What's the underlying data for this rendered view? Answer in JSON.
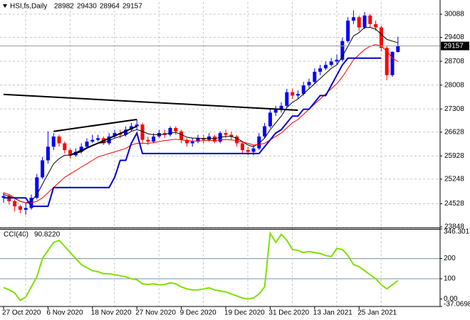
{
  "chart_data": [
    {
      "type": "candlestick",
      "title": "HSI,fs,Daily",
      "ylim": [
        23827,
        30443
      ],
      "yticks": [
        30088,
        29408,
        28708,
        28008,
        27308,
        26628,
        25928,
        25248,
        24528,
        23848
      ],
      "grid": true,
      "up_color": "#0000ff",
      "down_color": "#ff0000",
      "current_line_color": "#9a9a9a",
      "series": [
        {
          "open": [
            24700,
            24750,
            24600,
            24450,
            24350,
            24400,
            24700,
            25300,
            25800,
            26200,
            26500,
            26300,
            26100,
            25950,
            26050,
            26200,
            26350,
            26400,
            26450,
            26300,
            26500,
            26600,
            26550,
            26700,
            26800,
            26850,
            26400,
            26350,
            26500,
            26600,
            26550,
            26750,
            26650,
            26400,
            26300,
            26350,
            26450,
            26400,
            26500,
            26350,
            26600,
            26550,
            26500,
            26300,
            26100,
            26050,
            26150,
            26500,
            26800,
            27200,
            27300,
            27400,
            27800,
            27700,
            27750,
            28000,
            28100,
            28400,
            28500,
            28600,
            28700,
            28750,
            29300,
            29900,
            30000,
            29700,
            30050,
            29800,
            29700,
            29100,
            28300,
            28982
          ],
          "high": [
            24850,
            24800,
            24650,
            24500,
            24550,
            24800,
            25400,
            25900,
            26650,
            26600,
            26550,
            26350,
            26150,
            26150,
            26300,
            26450,
            26550,
            26550,
            26500,
            26600,
            26700,
            26700,
            26800,
            26900,
            27000,
            26900,
            26500,
            26600,
            26700,
            26700,
            26800,
            26800,
            26700,
            26450,
            26450,
            26550,
            26550,
            26600,
            26550,
            26650,
            26700,
            26650,
            26550,
            26350,
            26200,
            26250,
            26600,
            26900,
            27300,
            27400,
            27500,
            27900,
            27900,
            27850,
            28100,
            28200,
            28500,
            28600,
            28700,
            28800,
            28900,
            29400,
            30000,
            30200,
            30050,
            30150,
            30100,
            29900,
            29750,
            29150,
            29000,
            29430
          ],
          "low": [
            24550,
            24500,
            24300,
            24250,
            24200,
            24350,
            24650,
            25250,
            25700,
            26100,
            26200,
            26000,
            25850,
            25900,
            26000,
            26150,
            26300,
            26350,
            26250,
            26250,
            26450,
            26450,
            26500,
            26650,
            26700,
            26300,
            26250,
            26300,
            26450,
            26450,
            26500,
            26550,
            26300,
            26200,
            26200,
            26300,
            26300,
            26350,
            26300,
            26300,
            26450,
            26400,
            26200,
            26000,
            25950,
            25950,
            26100,
            26450,
            26750,
            27100,
            27200,
            27350,
            27600,
            27600,
            27700,
            27900,
            28050,
            28300,
            28450,
            28550,
            28600,
            28700,
            29250,
            29800,
            29600,
            29650,
            29700,
            29600,
            29000,
            28150,
            28250,
            28964
          ],
          "close": [
            24750,
            24600,
            24450,
            24350,
            24400,
            24700,
            25300,
            25800,
            26200,
            26500,
            26300,
            26100,
            25950,
            26050,
            26200,
            26350,
            26400,
            26450,
            26300,
            26500,
            26600,
            26550,
            26700,
            26800,
            26850,
            26400,
            26350,
            26500,
            26600,
            26550,
            26750,
            26650,
            26400,
            26300,
            26350,
            26450,
            26400,
            26500,
            26350,
            26600,
            26550,
            26500,
            26300,
            26100,
            26050,
            26150,
            26500,
            26800,
            27200,
            27300,
            27400,
            27800,
            27700,
            27750,
            28000,
            28100,
            28400,
            28500,
            28600,
            28700,
            28750,
            29300,
            29900,
            30000,
            29700,
            30050,
            29800,
            29700,
            29100,
            28300,
            28982,
            29157
          ]
        },
        {
          "color": "#000000",
          "values": [
            24800,
            24750,
            24680,
            24600,
            24550,
            24600,
            24800,
            25100,
            25400,
            25700,
            25850,
            25950,
            25950,
            26000,
            26050,
            26150,
            26250,
            26300,
            26320,
            26380,
            26450,
            26500,
            26550,
            26650,
            26700,
            26650,
            26580,
            26550,
            26560,
            26560,
            26600,
            26620,
            26560,
            26480,
            26450,
            26450,
            26440,
            26450,
            26430,
            26480,
            26500,
            26500,
            26450,
            26350,
            26250,
            26200,
            26300,
            26450,
            26700,
            26900,
            27100,
            27350,
            27500,
            27600,
            27750,
            27900,
            28050,
            28200,
            28350,
            28500,
            28600,
            28850,
            29150,
            29450,
            29550,
            29700,
            29700,
            29650,
            29500,
            29350,
            29300,
            29250
          ]
        },
        {
          "color": "#ff0000",
          "values": [
            24850,
            24800,
            24700,
            24600,
            24550,
            24550,
            24600,
            24700,
            24850,
            25000,
            25150,
            25300,
            25400,
            25500,
            25600,
            25700,
            25800,
            25900,
            25950,
            26000,
            26050,
            26100,
            26150,
            26250,
            26300,
            26300,
            26300,
            26320,
            26350,
            26380,
            26400,
            26420,
            26400,
            26380,
            26370,
            26370,
            26380,
            26390,
            26380,
            26400,
            26410,
            26400,
            26380,
            26340,
            26300,
            26250,
            26260,
            26300,
            26400,
            26500,
            26600,
            26750,
            26900,
            27000,
            27150,
            27300,
            27450,
            27600,
            27750,
            27900,
            28050,
            28250,
            28500,
            28750,
            28900,
            29050,
            29150,
            29200,
            29150,
            29000,
            28800,
            28700
          ]
        },
        {
          "color": "#0000cc",
          "values": [
            24700,
            24700,
            24700,
            24700,
            24700,
            24450,
            24450,
            24450,
            24450,
            25000,
            25000,
            25000,
            25000,
            25000,
            25000,
            25000,
            25000,
            25000,
            25000,
            25000,
            25300,
            25800,
            25800,
            26300,
            26600,
            26000,
            26000,
            26000,
            26000,
            26000,
            26000,
            26000,
            26000,
            26000,
            26000,
            26000,
            26000,
            26000,
            26000,
            26000,
            26000,
            26000,
            26000,
            26000,
            26000,
            26000,
            26000,
            26200,
            26400,
            26600,
            26700,
            26900,
            27100,
            27100,
            27300,
            27300,
            27500,
            27700,
            27700,
            28000,
            28300,
            28600,
            28800,
            28800,
            28800,
            28800,
            28800,
            28800,
            28800,
            null,
            null,
            null
          ]
        }
      ],
      "trendlines": [
        {
          "x": [
            0,
            53
          ],
          "y": [
            27735,
            27270
          ]
        },
        {
          "x": [
            9,
            24
          ],
          "y": [
            26650,
            27000
          ]
        },
        {
          "x": [
            12,
            24
          ],
          "y": [
            25950,
            26800
          ]
        }
      ]
    },
    {
      "type": "line",
      "ylim": [
        -37.0698,
        346.3017
      ],
      "yticks": [
        346.3017,
        200,
        100,
        {
          "value": 0,
          "label": "0.00"
        },
        -37.0698
      ],
      "levels": [
        200,
        100
      ],
      "categories": [
        "27 Oct 2020",
        null,
        null,
        null,
        null,
        null,
        null,
        null,
        "6 Nov 2020",
        null,
        null,
        null,
        null,
        null,
        null,
        null,
        "18 Nov 2020",
        null,
        null,
        null,
        null,
        null,
        null,
        null,
        "27 Nov 2020",
        null,
        null,
        null,
        null,
        null,
        null,
        null,
        "9 Dec 2020",
        null,
        null,
        null,
        null,
        null,
        null,
        null,
        "19 Dec 2020",
        null,
        null,
        null,
        null,
        null,
        null,
        null,
        "31 Dec 2020",
        null,
        null,
        null,
        null,
        null,
        null,
        null,
        "13 Jan 2021",
        null,
        null,
        null,
        null,
        null,
        null,
        null,
        "25 Jan 2021",
        null,
        null,
        null,
        null,
        null,
        null,
        null
      ],
      "series": [
        {
          "name": "CCI(40)",
          "color": "#7fe000",
          "values": [
            57,
            45,
            30,
            -7,
            10,
            60,
            110,
            200,
            240,
            280,
            290,
            260,
            230,
            200,
            170,
            155,
            140,
            135,
            125,
            125,
            120,
            115,
            110,
            100,
            95,
            75,
            72,
            75,
            70,
            72,
            80,
            75,
            60,
            50,
            45,
            45,
            50,
            55,
            45,
            40,
            35,
            25,
            15,
            5,
            0,
            5,
            25,
            60,
            325,
            280,
            320,
            290,
            245,
            240,
            230,
            235,
            230,
            225,
            215,
            210,
            250,
            245,
            215,
            170,
            160,
            140,
            120,
            100,
            70,
            50,
            70,
            90.822
          ],
          "value_labels": [
            null,
            null,
            null,
            null,
            null,
            null,
            null,
            null,
            null,
            null,
            null,
            null,
            null,
            null,
            null,
            null,
            null,
            null,
            null,
            null,
            null,
            null,
            null,
            null,
            null,
            null,
            null,
            null,
            null,
            null,
            null,
            null,
            null,
            null,
            null,
            null,
            null,
            null,
            null,
            null,
            null,
            null,
            null,
            null,
            null,
            null,
            null,
            null,
            null,
            null,
            null,
            null,
            null,
            null,
            null,
            null,
            null,
            null,
            null,
            null,
            null,
            null,
            null,
            null,
            null,
            null,
            null,
            null,
            null,
            null,
            null,
            "90.8220"
          ]
        }
      ]
    }
  ]
}
